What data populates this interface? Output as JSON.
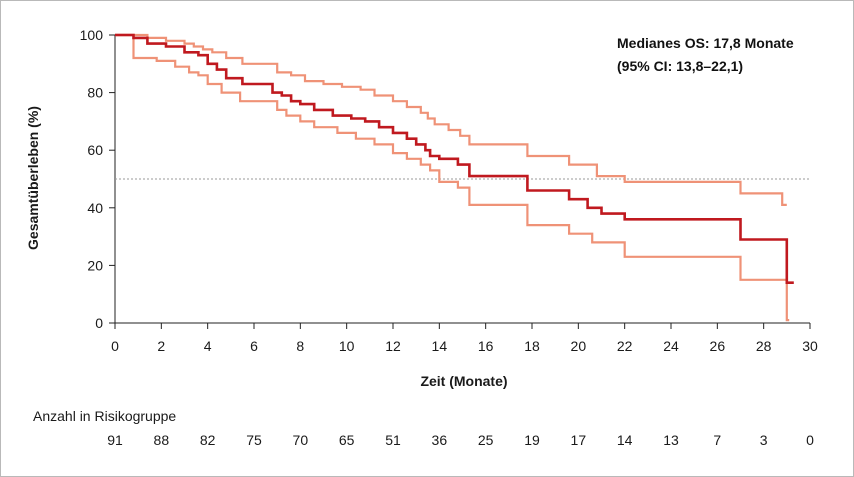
{
  "chart_data": {
    "type": "line",
    "xlabel": "Zeit (Monate)",
    "ylabel": "Gesamtüberleben (%)",
    "xlim": [
      0,
      30
    ],
    "ylim": [
      0,
      100
    ],
    "x_ticks": [
      0,
      2,
      4,
      6,
      8,
      10,
      12,
      14,
      16,
      18,
      20,
      22,
      24,
      26,
      28,
      30
    ],
    "y_ticks": [
      0,
      20,
      40,
      60,
      80,
      100
    ],
    "grid": false,
    "reference_line": {
      "y": 50,
      "style": "dotted"
    },
    "annotation": {
      "line1": "Medianes OS: 17,8 Monate",
      "line2": "(95% CI: 13,8–22,1)"
    },
    "colors": {
      "estimate": "#c0191f",
      "ci": "#ef9277",
      "reference": "#9a9a9a"
    },
    "series": [
      {
        "role": "estimate",
        "x": [
          0,
          0.8,
          1.4,
          2.2,
          3.0,
          3.6,
          4.0,
          4.4,
          4.8,
          5.5,
          6.8,
          7.2,
          7.6,
          8.0,
          8.6,
          9.4,
          10.2,
          10.8,
          11.4,
          12.0,
          12.6,
          13.0,
          13.4,
          13.6,
          14.0,
          14.8,
          15.3,
          17.8,
          19.6,
          20.4,
          21.0,
          22.0,
          27.0,
          29.0,
          29.3
        ],
        "y": [
          100,
          99,
          97,
          96,
          94,
          93,
          90,
          88,
          85,
          83,
          80,
          79,
          77,
          76,
          74,
          72,
          71,
          70,
          68,
          66,
          64,
          62,
          60,
          58,
          57,
          55,
          51,
          46,
          43,
          40,
          38,
          36,
          29,
          14,
          14
        ]
      },
      {
        "role": "ci-upper",
        "x": [
          0,
          0.8,
          1.4,
          2.2,
          3.0,
          3.4,
          3.8,
          4.2,
          4.8,
          5.5,
          7.0,
          7.6,
          8.2,
          9.0,
          9.8,
          10.6,
          11.2,
          12.0,
          12.6,
          13.2,
          13.5,
          13.8,
          14.4,
          14.9,
          15.3,
          17.8,
          19.6,
          20.8,
          22.0,
          27.0,
          28.8,
          29.0
        ],
        "y": [
          100,
          100,
          99,
          98,
          97,
          96,
          95,
          94,
          92,
          90,
          87,
          86,
          84,
          83,
          82,
          81,
          79,
          77,
          75,
          73,
          71,
          69,
          67,
          65,
          62,
          58,
          55,
          51,
          49,
          45,
          41,
          41
        ]
      },
      {
        "role": "ci-lower",
        "x": [
          0,
          0.8,
          1.8,
          2.6,
          3.2,
          3.6,
          4.0,
          4.6,
          5.4,
          7.0,
          7.4,
          8.0,
          8.6,
          9.6,
          10.4,
          11.2,
          12.0,
          12.6,
          13.2,
          13.6,
          14.0,
          14.8,
          15.3,
          17.8,
          19.6,
          20.6,
          22.0,
          27.0,
          29.0,
          29.1
        ],
        "y": [
          100,
          92,
          91,
          89,
          87,
          86,
          83,
          80,
          77,
          74,
          72,
          70,
          68,
          66,
          64,
          62,
          59,
          57,
          55,
          53,
          49,
          47,
          41,
          34,
          31,
          28,
          23,
          15,
          1,
          1
        ]
      }
    ],
    "risk_table": {
      "title": "Anzahl in Risikogruppe",
      "values": [
        "91",
        "88",
        "82",
        "75",
        "70",
        "65",
        "51",
        "36",
        "25",
        "19",
        "17",
        "14",
        "13",
        "7",
        "3",
        "0"
      ]
    }
  }
}
